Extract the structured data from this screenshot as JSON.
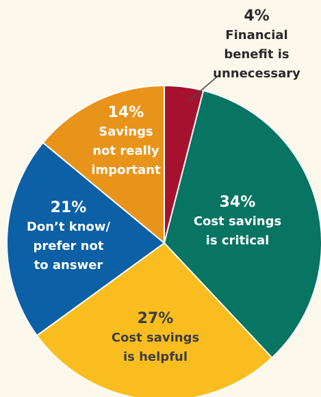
{
  "chart_data": {
    "type": "pie",
    "start_angle_deg": 0,
    "direction": "clockwise",
    "title": "",
    "slices": [
      {
        "value": 4,
        "pct_label": "4%",
        "label_lines": [
          "Financial",
          "benefit is",
          "unnecessary"
        ],
        "color": "#a6122e",
        "label_color": "#2a2a2a"
      },
      {
        "value": 34,
        "pct_label": "34%",
        "label_lines": [
          "Cost savings",
          "is critical"
        ],
        "color": "#087462",
        "label_color": "#ffffff"
      },
      {
        "value": 27,
        "pct_label": "27%",
        "label_lines": [
          "Cost savings",
          "is helpful"
        ],
        "color": "#f9bd1f",
        "label_color": "#3d3d3d"
      },
      {
        "value": 21,
        "pct_label": "21%",
        "label_lines": [
          "Don’t know/",
          "prefer not",
          "to answer"
        ],
        "color": "#0b60a6",
        "label_color": "#ffffff"
      },
      {
        "value": 14,
        "pct_label": "14%",
        "label_lines": [
          "Savings",
          "not really",
          "important"
        ],
        "color": "#e8941b",
        "label_color": "#ffffff"
      }
    ]
  }
}
